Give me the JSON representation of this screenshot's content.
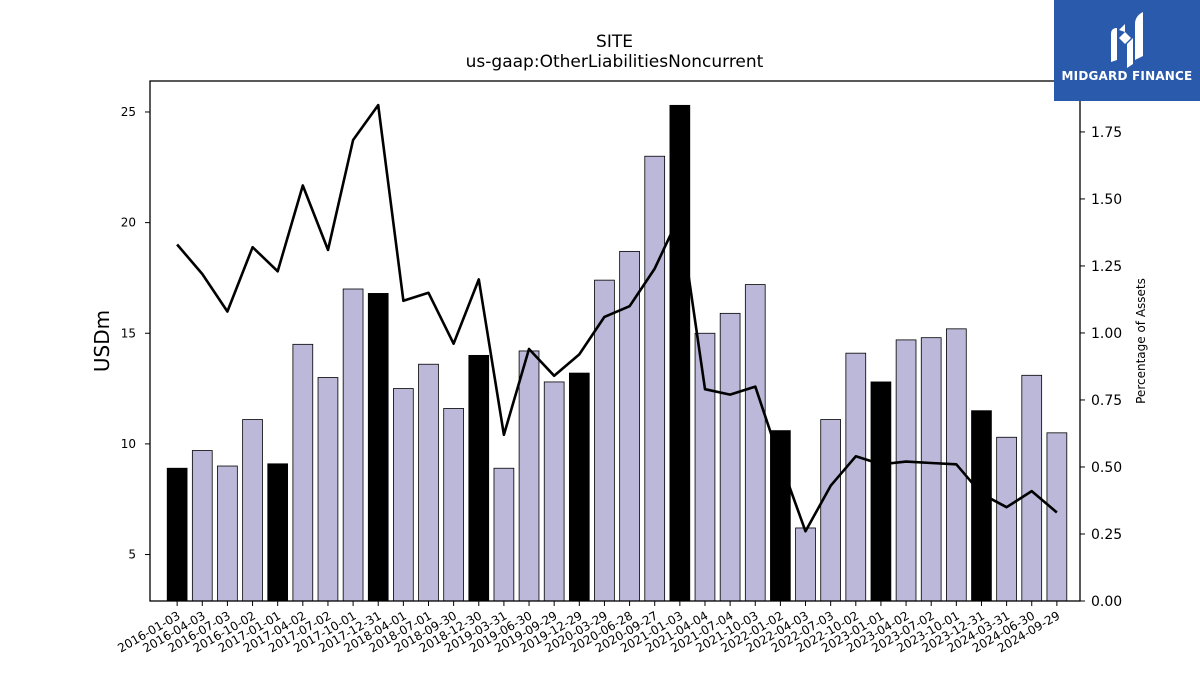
{
  "logo": {
    "name": "MIDGARD FINANCE",
    "mark_color": "#ffffff",
    "background": "#2a5aab"
  },
  "chart_data": {
    "type": "bar",
    "title": "SITE",
    "subtitle": "us-gaap:OtherLiabilitiesNoncurrent",
    "ylabel": "USDm",
    "y2label": "Percentage of Assets",
    "ylim": [
      2.9,
      26.4
    ],
    "y2lim": [
      0.0,
      1.94
    ],
    "yticks": [
      5,
      10,
      15,
      20,
      25
    ],
    "y2ticks": [
      "0.00",
      "0.25",
      "0.50",
      "0.75",
      "1.00",
      "1.25",
      "1.50",
      "1.75"
    ],
    "categories": [
      "2016-01-03",
      "2016-04-03",
      "2016-07-03",
      "2016-10-02",
      "2017-01-01",
      "2017-04-02",
      "2017-07-02",
      "2017-10-01",
      "2017-12-31",
      "2018-04-01",
      "2018-07-01",
      "2018-09-30",
      "2018-12-30",
      "2019-03-31",
      "2019-06-30",
      "2019-09-29",
      "2019-12-29",
      "2020-03-29",
      "2020-06-28",
      "2020-09-27",
      "2021-01-03",
      "2021-04-04",
      "2021-07-04",
      "2021-10-03",
      "2022-01-02",
      "2022-04-03",
      "2022-07-03",
      "2022-10-02",
      "2023-01-01",
      "2023-04-02",
      "2023-07-02",
      "2023-10-01",
      "2023-12-31",
      "2024-03-31",
      "2024-06-30",
      "2024-09-29"
    ],
    "series": [
      {
        "kind": "bar",
        "axis": "left",
        "values": [
          8.9,
          9.7,
          9.0,
          11.1,
          9.1,
          14.5,
          13.0,
          17.0,
          16.8,
          12.5,
          13.6,
          11.6,
          14.0,
          8.9,
          14.2,
          12.8,
          13.2,
          17.4,
          18.7,
          23.0,
          25.3,
          15.0,
          15.9,
          17.2,
          10.6,
          6.2,
          11.1,
          14.1,
          12.8,
          14.7,
          14.8,
          15.2,
          11.5,
          10.3,
          13.1,
          10.5
        ],
        "highlight": [
          true,
          false,
          false,
          false,
          true,
          false,
          false,
          false,
          true,
          false,
          false,
          false,
          true,
          false,
          false,
          false,
          true,
          false,
          false,
          false,
          true,
          false,
          false,
          false,
          true,
          false,
          false,
          false,
          true,
          false,
          false,
          false,
          true,
          false,
          false,
          false
        ],
        "color": "#bcb8d9",
        "highlight_color": "#000000"
      },
      {
        "kind": "line",
        "axis": "right",
        "values": [
          1.33,
          1.22,
          1.08,
          1.32,
          1.23,
          1.55,
          1.31,
          1.72,
          1.85,
          1.12,
          1.15,
          0.96,
          1.2,
          0.62,
          0.94,
          0.84,
          0.92,
          1.06,
          1.1,
          1.24,
          1.44,
          0.79,
          0.77,
          0.8,
          0.52,
          0.26,
          0.43,
          0.54,
          0.51,
          0.52,
          0.515,
          0.51,
          0.4,
          0.35,
          0.41,
          0.33
        ],
        "color": "#000000"
      }
    ]
  }
}
